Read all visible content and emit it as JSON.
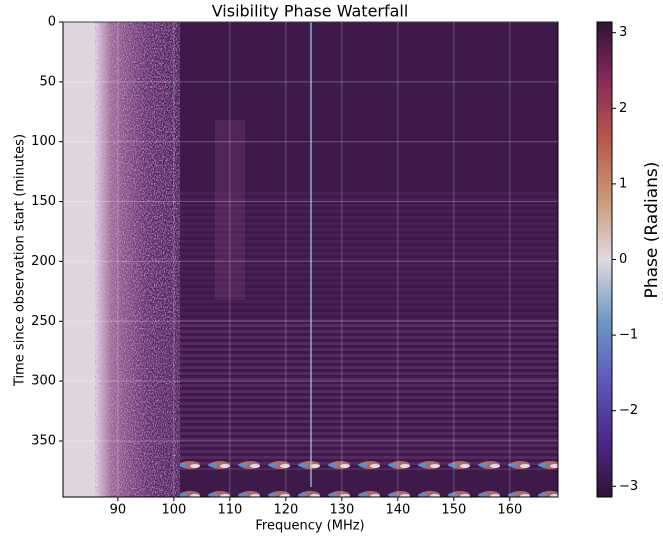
{
  "chart_data": {
    "type": "heatmap",
    "title": "Visibility Phase Waterfall",
    "xlabel": "Frequency (MHz)",
    "ylabel": "Time since observation start (minutes)",
    "xlim": [
      80.2,
      168.6
    ],
    "xticks": [
      90,
      100,
      110,
      120,
      130,
      140,
      150,
      160
    ],
    "ylim": [
      396.8,
      0
    ],
    "yticks": [
      0,
      50,
      100,
      150,
      200,
      250,
      300,
      350
    ],
    "grid": true,
    "colorbar": {
      "label": "Phase (Radians)",
      "lim": [
        -3.1416,
        3.1416
      ],
      "ticks": [
        3,
        2,
        1,
        0,
        {
          "value": -1,
          "label": "−1"
        },
        {
          "value": -2,
          "label": "−2"
        },
        {
          "value": -3,
          "label": "−3"
        }
      ],
      "colors": [
        "#2f1436",
        "#4b2a8a",
        "#5e5bbd",
        "#6f9ac4",
        "#e2d9e2",
        "#c99a77",
        "#b85a4a",
        "#8a2a5a",
        "#2f1436"
      ]
    }
  }
}
